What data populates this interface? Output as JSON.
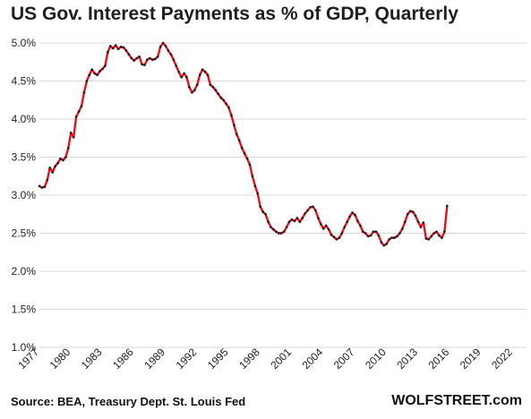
{
  "chart_data": {
    "type": "line",
    "title": "US Gov. Interest Payments as % of GDP, Quarterly",
    "xlabel": "",
    "ylabel": "",
    "ylim": [
      1.0,
      5.0
    ],
    "y_ticks": [
      "1.0%",
      "1.5%",
      "2.0%",
      "2.5%",
      "3.0%",
      "3.5%",
      "4.0%",
      "4.5%",
      "5.0%"
    ],
    "y_tick_values": [
      1.0,
      1.5,
      2.0,
      2.5,
      3.0,
      3.5,
      4.0,
      4.5,
      5.0
    ],
    "x_ticks": [
      "1977",
      "1980",
      "1983",
      "1986",
      "1989",
      "1992",
      "1995",
      "1998",
      "2001",
      "2004",
      "2007",
      "2010",
      "2013",
      "2016",
      "2019",
      "2022"
    ],
    "x_tick_values": [
      1977,
      1980,
      1983,
      1986,
      1989,
      1992,
      1995,
      1998,
      2001,
      2004,
      2007,
      2010,
      2013,
      2016,
      2019,
      2022
    ],
    "xlim": [
      1977,
      2023.3
    ],
    "grid": "horizontal",
    "line_color": "#e8121b",
    "marker_color": "#1a1a1a",
    "series": [
      {
        "values": [
          [
            1977.0,
            3.12
          ],
          [
            1977.25,
            3.1
          ],
          [
            1977.5,
            3.11
          ],
          [
            1977.75,
            3.2
          ],
          [
            1978.0,
            3.36
          ],
          [
            1978.25,
            3.3
          ],
          [
            1978.5,
            3.38
          ],
          [
            1978.75,
            3.42
          ],
          [
            1979.0,
            3.48
          ],
          [
            1979.25,
            3.46
          ],
          [
            1979.5,
            3.5
          ],
          [
            1979.75,
            3.62
          ],
          [
            1980.0,
            3.82
          ],
          [
            1980.25,
            3.76
          ],
          [
            1980.5,
            4.03
          ],
          [
            1980.75,
            4.1
          ],
          [
            1981.0,
            4.17
          ],
          [
            1981.25,
            4.35
          ],
          [
            1981.5,
            4.5
          ],
          [
            1981.75,
            4.58
          ],
          [
            1982.0,
            4.65
          ],
          [
            1982.25,
            4.6
          ],
          [
            1982.5,
            4.58
          ],
          [
            1982.75,
            4.63
          ],
          [
            1983.0,
            4.66
          ],
          [
            1983.25,
            4.7
          ],
          [
            1983.5,
            4.88
          ],
          [
            1983.75,
            4.96
          ],
          [
            1984.0,
            4.93
          ],
          [
            1984.25,
            4.97
          ],
          [
            1984.5,
            4.92
          ],
          [
            1984.75,
            4.95
          ],
          [
            1985.0,
            4.94
          ],
          [
            1985.25,
            4.9
          ],
          [
            1985.5,
            4.85
          ],
          [
            1985.75,
            4.8
          ],
          [
            1986.0,
            4.77
          ],
          [
            1986.25,
            4.8
          ],
          [
            1986.5,
            4.82
          ],
          [
            1986.75,
            4.72
          ],
          [
            1987.0,
            4.71
          ],
          [
            1987.25,
            4.78
          ],
          [
            1987.5,
            4.8
          ],
          [
            1987.75,
            4.78
          ],
          [
            1988.0,
            4.79
          ],
          [
            1988.25,
            4.82
          ],
          [
            1988.5,
            4.95
          ],
          [
            1988.75,
            5.0
          ],
          [
            1989.0,
            4.96
          ],
          [
            1989.25,
            4.9
          ],
          [
            1989.5,
            4.85
          ],
          [
            1989.75,
            4.78
          ],
          [
            1990.0,
            4.7
          ],
          [
            1990.25,
            4.62
          ],
          [
            1990.5,
            4.55
          ],
          [
            1990.75,
            4.6
          ],
          [
            1991.0,
            4.55
          ],
          [
            1991.25,
            4.42
          ],
          [
            1991.5,
            4.35
          ],
          [
            1991.75,
            4.38
          ],
          [
            1992.0,
            4.45
          ],
          [
            1992.25,
            4.58
          ],
          [
            1992.5,
            4.65
          ],
          [
            1992.75,
            4.62
          ],
          [
            1993.0,
            4.58
          ],
          [
            1993.25,
            4.45
          ],
          [
            1993.5,
            4.42
          ],
          [
            1993.75,
            4.38
          ],
          [
            1994.0,
            4.33
          ],
          [
            1994.25,
            4.28
          ],
          [
            1994.5,
            4.25
          ],
          [
            1994.75,
            4.2
          ],
          [
            1995.0,
            4.15
          ],
          [
            1995.25,
            4.05
          ],
          [
            1995.5,
            3.92
          ],
          [
            1995.75,
            3.8
          ],
          [
            1996.0,
            3.72
          ],
          [
            1996.25,
            3.62
          ],
          [
            1996.5,
            3.55
          ],
          [
            1996.75,
            3.48
          ],
          [
            1997.0,
            3.4
          ],
          [
            1997.25,
            3.25
          ],
          [
            1997.5,
            3.12
          ],
          [
            1997.75,
            3.02
          ],
          [
            1998.0,
            2.85
          ],
          [
            1998.25,
            2.78
          ],
          [
            1998.5,
            2.75
          ],
          [
            1998.75,
            2.65
          ],
          [
            1999.0,
            2.58
          ],
          [
            1999.25,
            2.55
          ],
          [
            1999.5,
            2.52
          ],
          [
            1999.75,
            2.5
          ],
          [
            2000.0,
            2.5
          ],
          [
            2000.25,
            2.52
          ],
          [
            2000.5,
            2.58
          ],
          [
            2000.75,
            2.65
          ],
          [
            2001.0,
            2.68
          ],
          [
            2001.25,
            2.66
          ],
          [
            2001.5,
            2.7
          ],
          [
            2001.75,
            2.65
          ],
          [
            2002.0,
            2.7
          ],
          [
            2002.25,
            2.76
          ],
          [
            2002.5,
            2.8
          ],
          [
            2002.75,
            2.84
          ],
          [
            2003.0,
            2.85
          ],
          [
            2003.25,
            2.8
          ],
          [
            2003.5,
            2.7
          ],
          [
            2003.75,
            2.62
          ],
          [
            2004.0,
            2.56
          ],
          [
            2004.25,
            2.6
          ],
          [
            2004.5,
            2.55
          ],
          [
            2004.75,
            2.48
          ],
          [
            2005.0,
            2.45
          ],
          [
            2005.25,
            2.42
          ],
          [
            2005.5,
            2.44
          ],
          [
            2005.75,
            2.5
          ],
          [
            2006.0,
            2.58
          ],
          [
            2006.25,
            2.65
          ],
          [
            2006.5,
            2.72
          ],
          [
            2006.75,
            2.77
          ],
          [
            2007.0,
            2.74
          ],
          [
            2007.25,
            2.66
          ],
          [
            2007.5,
            2.6
          ],
          [
            2007.75,
            2.52
          ],
          [
            2008.0,
            2.5
          ],
          [
            2008.25,
            2.46
          ],
          [
            2008.5,
            2.47
          ],
          [
            2008.75,
            2.52
          ],
          [
            2009.0,
            2.52
          ],
          [
            2009.25,
            2.47
          ],
          [
            2009.5,
            2.38
          ],
          [
            2009.75,
            2.34
          ],
          [
            2010.0,
            2.36
          ],
          [
            2010.25,
            2.42
          ],
          [
            2010.5,
            2.44
          ],
          [
            2010.75,
            2.44
          ],
          [
            2011.0,
            2.46
          ],
          [
            2011.25,
            2.5
          ],
          [
            2011.5,
            2.56
          ],
          [
            2011.75,
            2.65
          ],
          [
            2012.0,
            2.75
          ],
          [
            2012.25,
            2.79
          ],
          [
            2012.5,
            2.78
          ],
          [
            2012.75,
            2.73
          ],
          [
            2013.0,
            2.65
          ],
          [
            2013.25,
            2.58
          ],
          [
            2013.5,
            2.64
          ],
          [
            2013.75,
            2.43
          ],
          [
            2014.0,
            2.42
          ],
          [
            2014.25,
            2.46
          ],
          [
            2014.5,
            2.5
          ],
          [
            2014.75,
            2.52
          ],
          [
            2015.0,
            2.47
          ],
          [
            2015.25,
            2.44
          ],
          [
            2015.5,
            2.52
          ],
          [
            2015.75,
            2.86
          ]
        ]
      }
    ]
  },
  "source_text": "Source: BEA, Treasury Dept. St. Louis Fed",
  "brand_text": "WOLFSTREET.com"
}
